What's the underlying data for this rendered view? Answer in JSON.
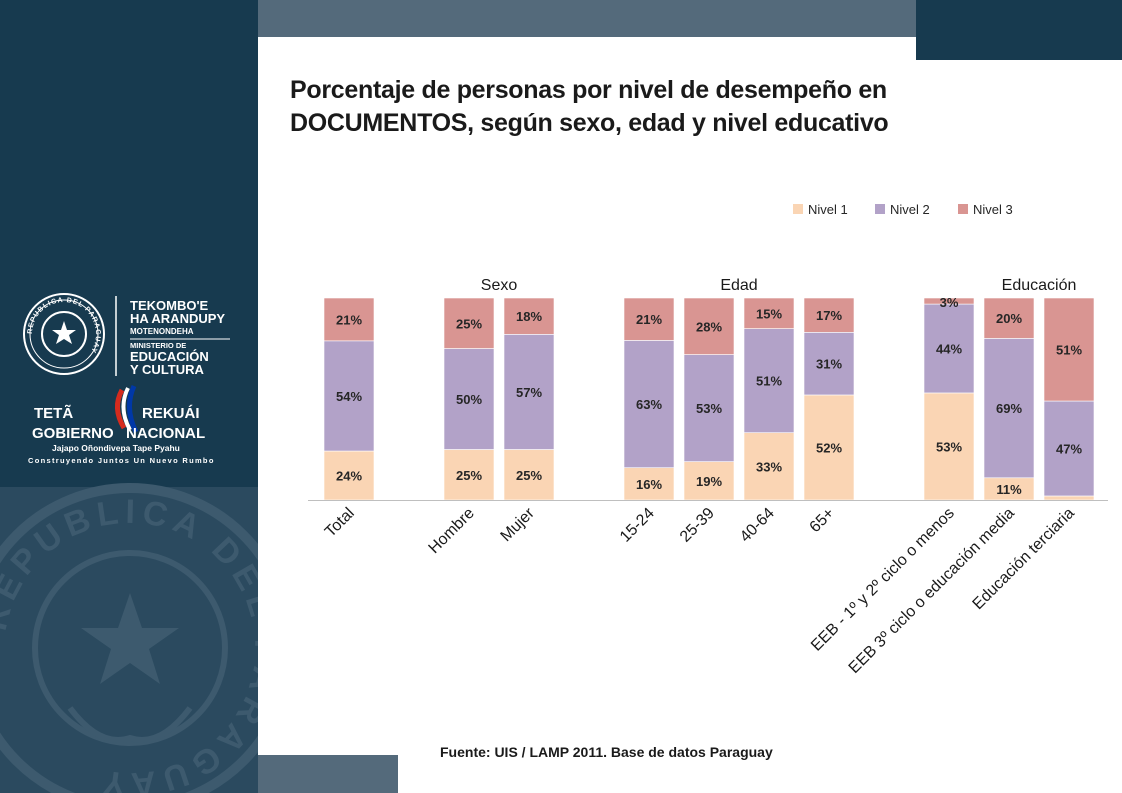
{
  "title_line1": "Porcentaje de personas por nivel de desempeño en",
  "title_line2": "DOCUMENTOS, según sexo, edad y nivel educativo",
  "source": "Fuente:  UIS / LAMP 2011. Base de datos Paraguay",
  "logos": {
    "ministry": {
      "seal_ring_text": "REPUBLICA DEL PARAGUAY",
      "line1": "TEKOMBO'E",
      "line2": "HA ARANDUPY",
      "line3": "MOTENONDEHA",
      "line4": "MINISTERIO DE",
      "line5": "EDUCACIÓN",
      "line6": "Y CULTURA"
    },
    "government": {
      "line1a": "TETÃ",
      "line1b": "REKUÁI",
      "line2a": "GOBIERNO",
      "line2b": "NACIONAL",
      "line3": "Jajapo Oñondivepa Tape Pyahu",
      "line4": "Construyendo Juntos Un Nuevo Rumbo"
    },
    "background_seal_text": "REPUBLICA DEL PARAGUAY"
  },
  "colors": {
    "sidebar": "#173a4f",
    "nivel1": "#fad5b4",
    "nivel2": "#b2a2c8",
    "nivel3": "#d99592"
  },
  "chart_data": {
    "type": "bar",
    "stacked": true,
    "legend_position": "top-right",
    "ylim": [
      0,
      100
    ],
    "groups": [
      {
        "label": "",
        "categories": [
          "Total"
        ]
      },
      {
        "label": "Sexo",
        "categories": [
          "Hombre",
          "Mujer"
        ]
      },
      {
        "label": "Edad",
        "categories": [
          "15-24",
          "25-39",
          "40-64",
          "65+"
        ]
      },
      {
        "label": "Educación",
        "categories": [
          "EEB - 1º y 2º ciclo o menos",
          "EEB 3º ciclo o educación media",
          "Educación terciaria"
        ]
      }
    ],
    "categories": [
      "Total",
      "Hombre",
      "Mujer",
      "15-24",
      "25-39",
      "40-64",
      "65+",
      "EEB - 1º y 2º ciclo o menos",
      "EEB 3º ciclo o educación media",
      "Educación terciaria"
    ],
    "series": [
      {
        "name": "Nivel 1",
        "values": [
          24,
          25,
          25,
          16,
          19,
          33,
          52,
          53,
          11,
          2
        ]
      },
      {
        "name": "Nivel 2",
        "values": [
          54,
          50,
          57,
          63,
          53,
          51,
          31,
          44,
          69,
          47
        ]
      },
      {
        "name": "Nivel 3",
        "values": [
          21,
          25,
          18,
          21,
          28,
          15,
          17,
          3,
          20,
          51
        ]
      }
    ],
    "data_labels": [
      [
        "24%",
        "25%",
        "25%",
        "16%",
        "19%",
        "33%",
        "52%",
        "53%",
        "11%",
        "2%"
      ],
      [
        "54%",
        "50%",
        "57%",
        "63%",
        "53%",
        "51%",
        "31%",
        "44%",
        "69%",
        "47%"
      ],
      [
        "21%",
        "25%",
        "18%",
        "21%",
        "28%",
        "15%",
        "17%",
        "3%",
        "20%",
        "51%"
      ]
    ]
  }
}
